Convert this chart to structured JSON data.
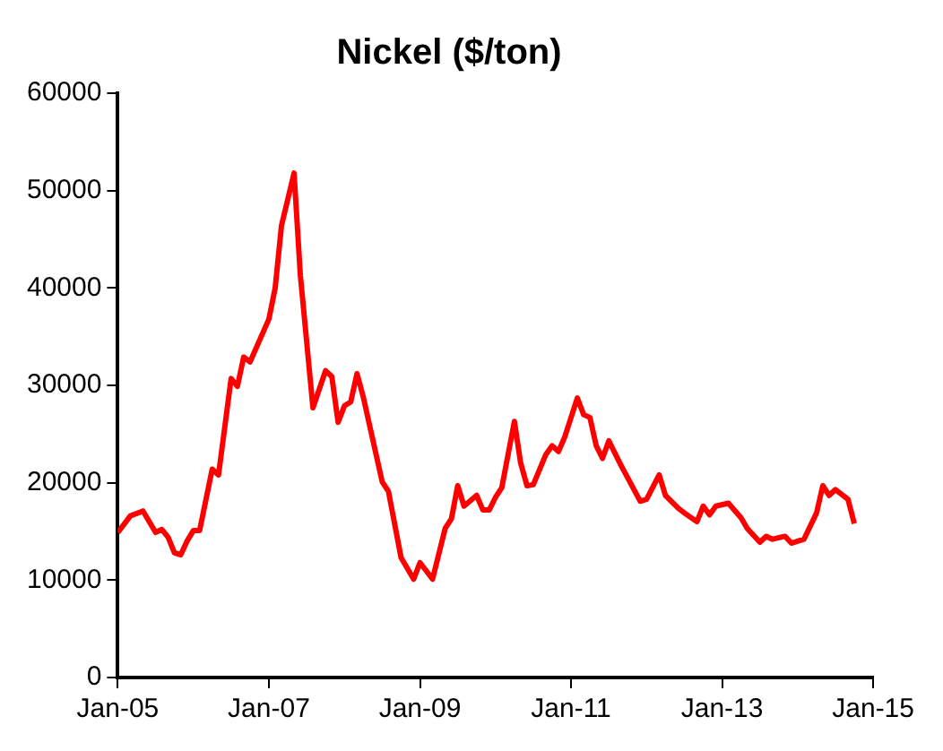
{
  "chart_data": {
    "type": "line",
    "title": "Nickel ($/ton)",
    "x": [
      "2005-01",
      "2005-03",
      "2005-05",
      "2005-07",
      "2005-08",
      "2005-09",
      "2005-10",
      "2005-11",
      "2005-12",
      "2006-01",
      "2006-02",
      "2006-04",
      "2006-05",
      "2006-07",
      "2006-08",
      "2006-09",
      "2006-10",
      "2007-01",
      "2007-02",
      "2007-03",
      "2007-05",
      "2007-06",
      "2007-08",
      "2007-10",
      "2007-11",
      "2007-12",
      "2008-01",
      "2008-02",
      "2008-03",
      "2008-04",
      "2008-06",
      "2008-07",
      "2008-08",
      "2008-10",
      "2008-12",
      "2009-01",
      "2009-03",
      "2009-05",
      "2009-06",
      "2009-07",
      "2009-08",
      "2009-10",
      "2009-11",
      "2009-12",
      "2010-01",
      "2010-02",
      "2010-04",
      "2010-05",
      "2010-06",
      "2010-07",
      "2010-09",
      "2010-10",
      "2010-11",
      "2010-12",
      "2011-02",
      "2011-03",
      "2011-04",
      "2011-05",
      "2011-06",
      "2011-07",
      "2011-09",
      "2011-12",
      "2012-01",
      "2012-03",
      "2012-04",
      "2012-06",
      "2012-07",
      "2012-09",
      "2012-10",
      "2012-11",
      "2012-12",
      "2013-02",
      "2013-04",
      "2013-05",
      "2013-07",
      "2013-08",
      "2013-09",
      "2013-11",
      "2013-12",
      "2014-02",
      "2014-04",
      "2014-05",
      "2014-06",
      "2014-07",
      "2014-09",
      "2014-10"
    ],
    "series": [
      {
        "color": "#ff0000",
        "values": [
          14900,
          16600,
          17100,
          14900,
          15200,
          14400,
          12800,
          12600,
          14000,
          15100,
          15100,
          21400,
          20800,
          30700,
          29900,
          32900,
          32400,
          36800,
          40000,
          46400,
          51800,
          41300,
          27700,
          31500,
          30900,
          26200,
          27900,
          28300,
          31200,
          28800,
          23000,
          20100,
          19100,
          12300,
          10100,
          11800,
          10100,
          15300,
          16300,
          19700,
          17600,
          18700,
          17200,
          17200,
          18500,
          19500,
          26300,
          22000,
          19700,
          19800,
          22900,
          23800,
          23200,
          24700,
          28700,
          27000,
          26700,
          23800,
          22500,
          24300,
          21700,
          18100,
          18300,
          20800,
          18700,
          17400,
          16900,
          16000,
          17600,
          16700,
          17600,
          17900,
          16400,
          15300,
          13900,
          14500,
          14200,
          14500,
          13800,
          14200,
          16900,
          19700,
          18700,
          19300,
          18300,
          15800
        ]
      }
    ],
    "xlim": [
      "2005-01",
      "2015-01"
    ],
    "xticks": [
      {
        "value": "2005-01",
        "label": "Jan-05"
      },
      {
        "value": "2007-01",
        "label": "Jan-07"
      },
      {
        "value": "2009-01",
        "label": "Jan-09"
      },
      {
        "value": "2011-01",
        "label": "Jan-11"
      },
      {
        "value": "2013-01",
        "label": "Jan-13"
      },
      {
        "value": "2015-01",
        "label": "Jan-15"
      }
    ],
    "ylim": [
      0,
      60000
    ],
    "yticks": [
      0,
      10000,
      20000,
      30000,
      40000,
      50000,
      60000
    ],
    "grid": false,
    "legend": false,
    "marker": "none",
    "line_style": "solid"
  }
}
